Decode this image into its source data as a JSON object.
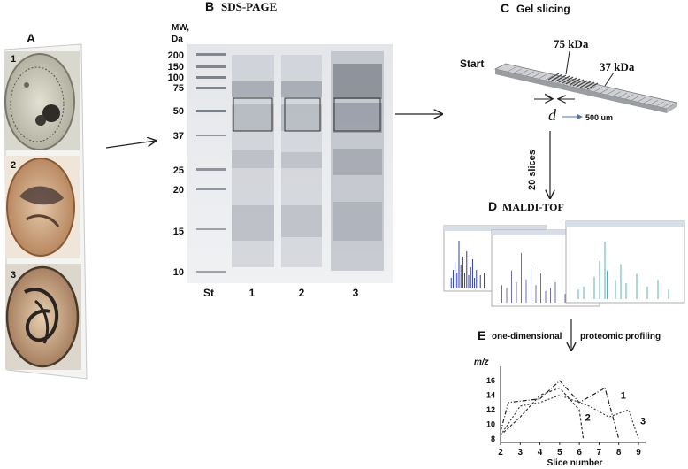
{
  "panel_a": {
    "label": "A",
    "images": [
      {
        "number": "1",
        "base_color": "#c9c7b8"
      },
      {
        "number": "2",
        "base_color": "#c79a70"
      },
      {
        "number": "3",
        "base_color": "#b08763"
      }
    ]
  },
  "panel_b": {
    "label": "B",
    "title": "SDS-PAGE",
    "mw_label": "MW,",
    "mw_unit": "Da",
    "markers": [
      "200",
      "150",
      "100",
      "75",
      "50",
      "37",
      "25",
      "20",
      "15",
      "10"
    ],
    "lanes": [
      "St",
      "1",
      "2",
      "3"
    ]
  },
  "panel_c": {
    "label": "C",
    "title": "Gel slicing",
    "start_label": "Start",
    "label_75": "75 kDa",
    "label_37": "37 kDa",
    "d_label": "d",
    "scale_label": "500 um"
  },
  "arrow_slices_label": "20 slices",
  "panel_d": {
    "label": "D",
    "title": "MALDI-TOF"
  },
  "panel_e": {
    "label": "E",
    "text_left": "one-dimensional",
    "text_right": "proteomic profiling"
  },
  "chart_data": {
    "type": "line",
    "ylabel": "m/z",
    "xlabel": "Slice number",
    "x_ticks": [
      "2",
      "3",
      "4",
      "5",
      "6",
      "7",
      "8",
      "9"
    ],
    "y_ticks": [
      "8",
      "10",
      "12",
      "14",
      "16"
    ],
    "xlim": [
      2,
      9
    ],
    "ylim": [
      7.5,
      17
    ],
    "series": [
      {
        "name": "1",
        "points": [
          [
            2,
            9
          ],
          [
            2.4,
            13
          ],
          [
            4,
            13.5
          ],
          [
            5,
            16
          ],
          [
            6,
            13
          ],
          [
            7.3,
            15
          ],
          [
            8,
            8
          ]
        ]
      },
      {
        "name": "2",
        "points": [
          [
            2,
            8.5
          ],
          [
            3,
            11
          ],
          [
            4,
            14
          ],
          [
            5,
            15
          ],
          [
            6,
            12
          ],
          [
            6.2,
            8
          ]
        ]
      },
      {
        "name": "3",
        "points": [
          [
            2,
            8.5
          ],
          [
            3,
            12.5
          ],
          [
            4,
            13
          ],
          [
            5,
            14
          ],
          [
            6.5,
            12.5
          ],
          [
            7.5,
            11
          ],
          [
            8.5,
            12
          ],
          [
            9,
            8
          ]
        ]
      }
    ]
  }
}
